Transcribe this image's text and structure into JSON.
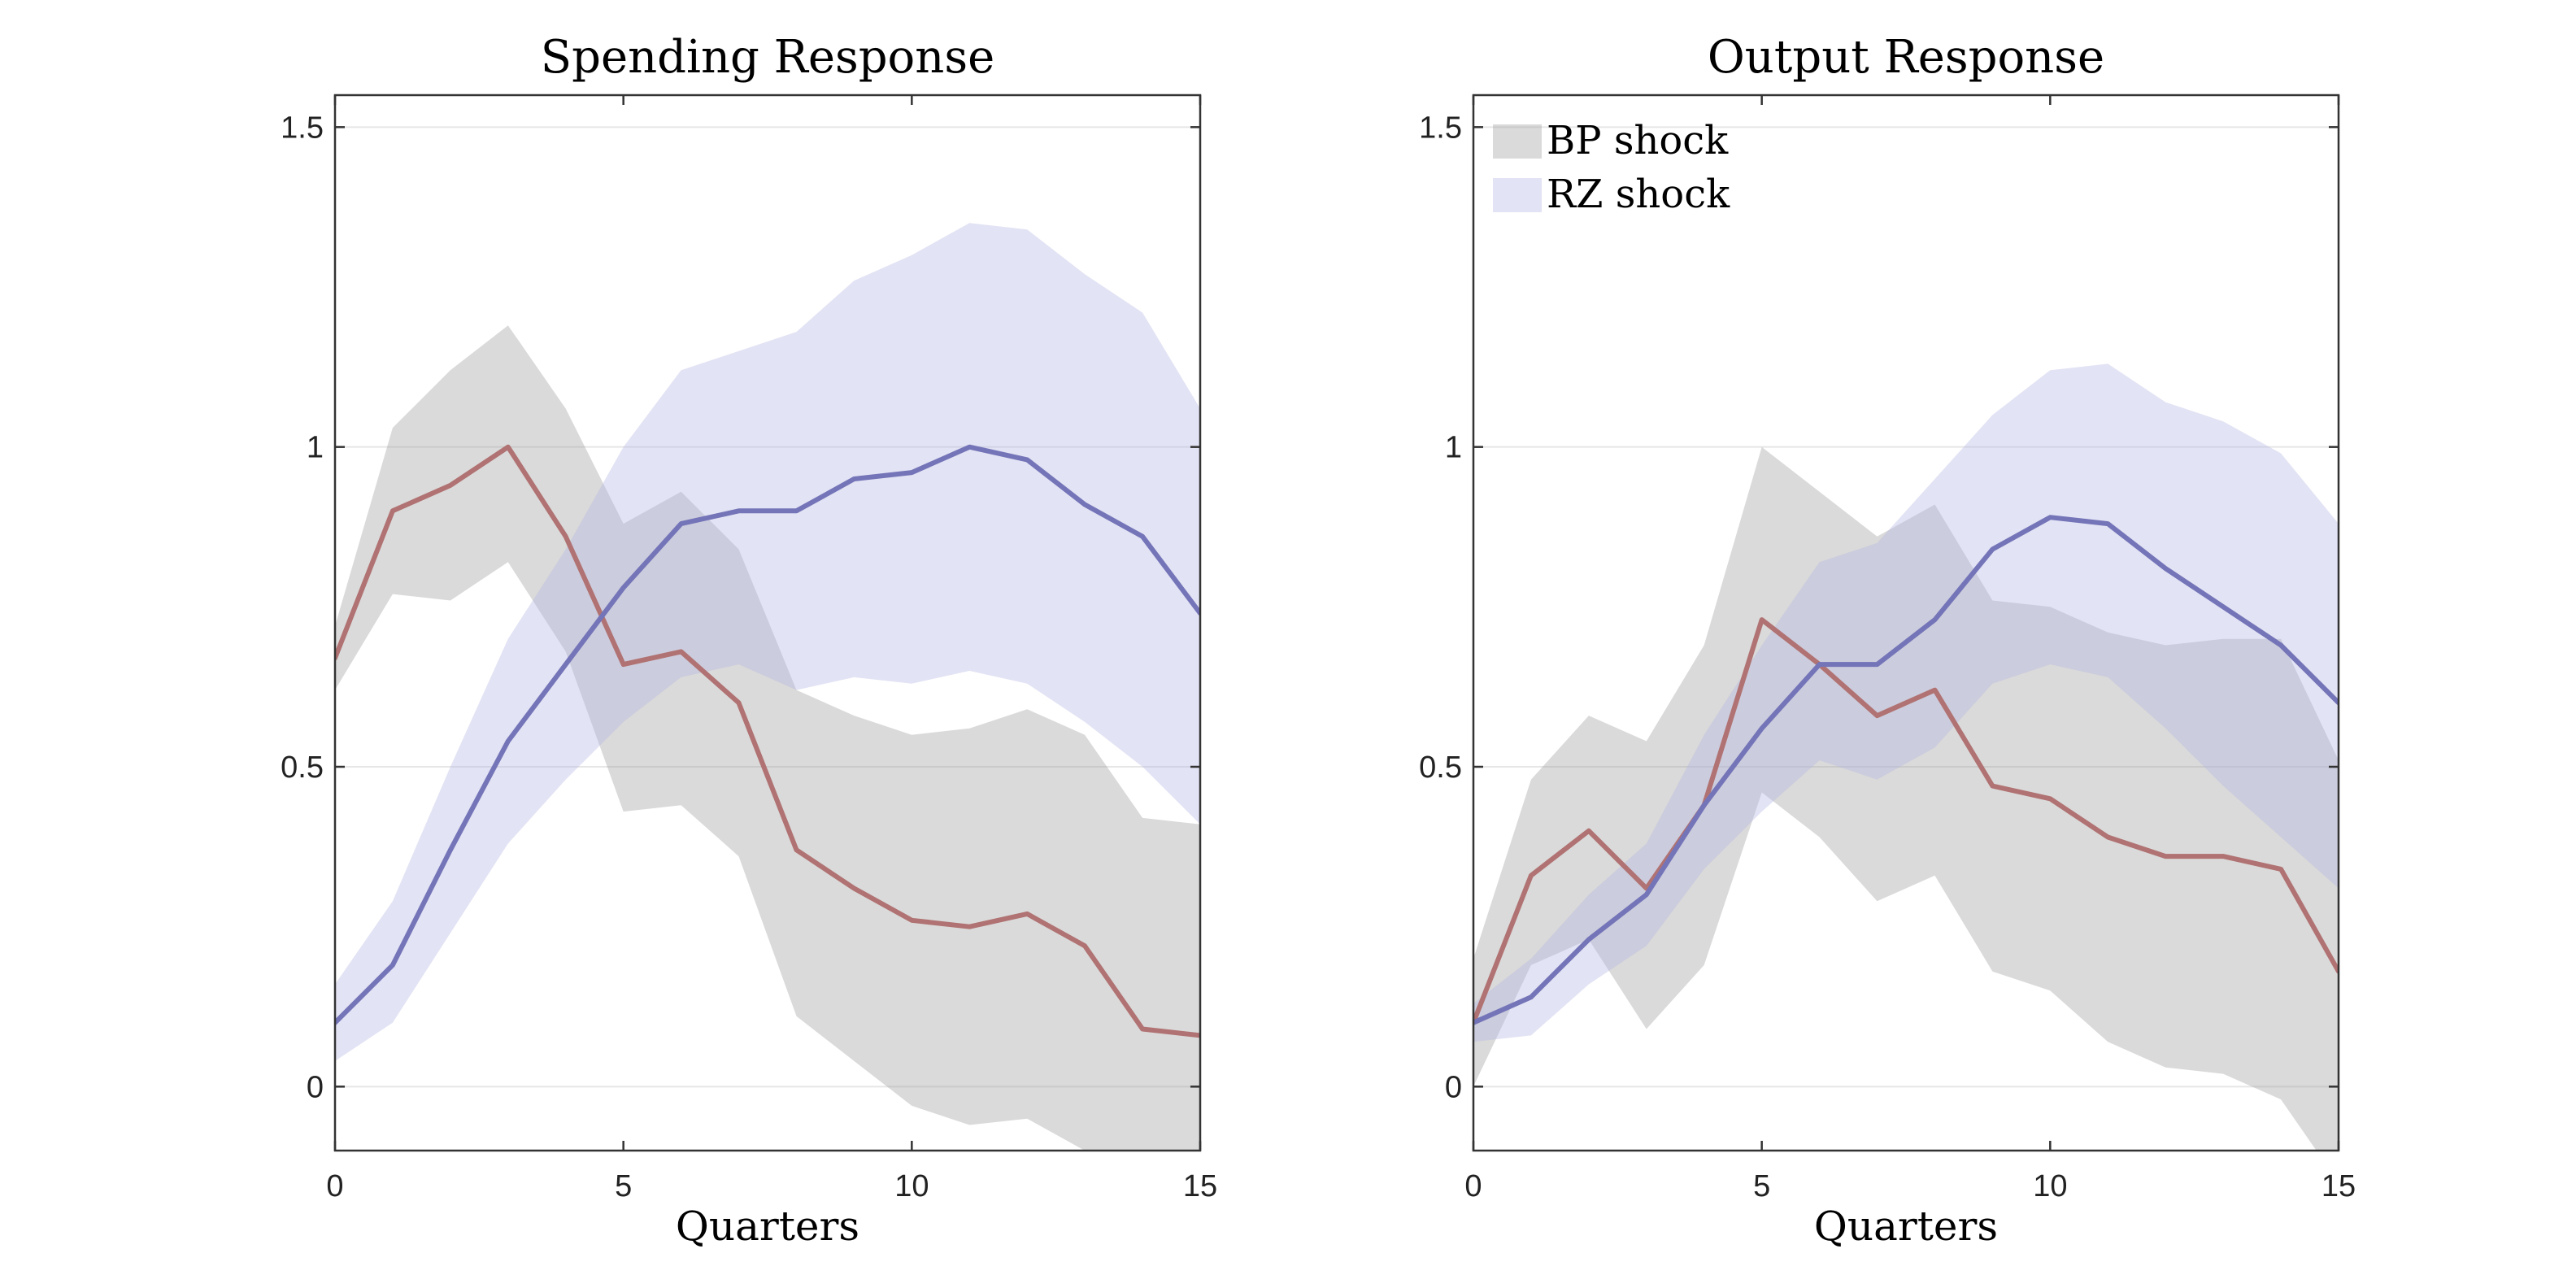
{
  "colors": {
    "bp_band": "#9e9e9e",
    "rz_band": "#b3b5e3",
    "bp_line": "#b07272",
    "rz_line": "#7474b8"
  },
  "legend": {
    "placement": "top-left",
    "entries": [
      "BP shock",
      "RZ shock"
    ]
  },
  "chart_data": [
    {
      "type": "line",
      "title": "Spending Response",
      "xlabel": "Quarters",
      "ylabel": "",
      "xlim": [
        0,
        15
      ],
      "ylim": [
        -0.1,
        1.55
      ],
      "xticks": [
        0,
        5,
        10,
        15
      ],
      "yticks": [
        0,
        0.5,
        1,
        1.5
      ],
      "ytick_labels": [
        "0",
        "0.5",
        "1",
        "1.5"
      ],
      "grid": true,
      "x": [
        0,
        1,
        2,
        3,
        4,
        5,
        6,
        7,
        8,
        9,
        10,
        11,
        12,
        13,
        14,
        15
      ],
      "series": [
        {
          "name": "BP shock",
          "band_color_key": "bp_band",
          "line_color_key": "bp_line",
          "values": [
            0.67,
            0.9,
            0.94,
            1.0,
            0.86,
            0.66,
            0.68,
            0.6,
            0.37,
            0.31,
            0.26,
            0.25,
            0.27,
            0.22,
            0.09,
            0.08
          ],
          "lower": [
            0.62,
            0.77,
            0.76,
            0.82,
            0.68,
            0.43,
            0.44,
            0.36,
            0.11,
            0.04,
            -0.03,
            -0.06,
            -0.05,
            -0.1,
            -0.14,
            -0.15
          ],
          "upper": [
            0.72,
            1.03,
            1.12,
            1.19,
            1.06,
            0.88,
            0.93,
            0.84,
            0.62,
            0.58,
            0.55,
            0.56,
            0.59,
            0.55,
            0.42,
            0.41
          ]
        },
        {
          "name": "RZ shock",
          "band_color_key": "rz_band",
          "line_color_key": "rz_line",
          "values": [
            0.1,
            0.19,
            0.37,
            0.54,
            0.66,
            0.78,
            0.88,
            0.9,
            0.9,
            0.95,
            0.96,
            1.0,
            0.98,
            0.91,
            0.86,
            0.74
          ],
          "lower": [
            0.04,
            0.1,
            0.24,
            0.38,
            0.48,
            0.57,
            0.64,
            0.66,
            0.62,
            0.64,
            0.63,
            0.65,
            0.63,
            0.57,
            0.5,
            0.41
          ],
          "upper": [
            0.16,
            0.29,
            0.5,
            0.7,
            0.84,
            1.0,
            1.12,
            1.15,
            1.18,
            1.26,
            1.3,
            1.35,
            1.34,
            1.27,
            1.21,
            1.06
          ]
        }
      ]
    },
    {
      "type": "line",
      "title": "Output Response",
      "xlabel": "Quarters",
      "ylabel": "",
      "xlim": [
        0,
        15
      ],
      "ylim": [
        -0.1,
        1.55
      ],
      "xticks": [
        0,
        5,
        10,
        15
      ],
      "yticks": [
        0,
        0.5,
        1,
        1.5
      ],
      "ytick_labels": [
        "0",
        "0.5",
        "1",
        "1.5"
      ],
      "grid": true,
      "x": [
        0,
        1,
        2,
        3,
        4,
        5,
        6,
        7,
        8,
        9,
        10,
        11,
        12,
        13,
        14,
        15
      ],
      "series": [
        {
          "name": "BP shock",
          "band_color_key": "bp_band",
          "line_color_key": "bp_line",
          "values": [
            0.1,
            0.33,
            0.4,
            0.31,
            0.44,
            0.73,
            0.66,
            0.58,
            0.62,
            0.47,
            0.45,
            0.39,
            0.36,
            0.36,
            0.34,
            0.18
          ],
          "lower": [
            0.0,
            0.19,
            0.23,
            0.09,
            0.19,
            0.46,
            0.39,
            0.29,
            0.33,
            0.18,
            0.15,
            0.07,
            0.03,
            0.02,
            -0.02,
            -0.15
          ],
          "upper": [
            0.2,
            0.48,
            0.58,
            0.54,
            0.69,
            1.0,
            0.93,
            0.86,
            0.91,
            0.76,
            0.75,
            0.71,
            0.69,
            0.7,
            0.7,
            0.51
          ]
        },
        {
          "name": "RZ shock",
          "band_color_key": "rz_band",
          "line_color_key": "rz_line",
          "values": [
            0.1,
            0.14,
            0.23,
            0.3,
            0.44,
            0.56,
            0.66,
            0.66,
            0.73,
            0.84,
            0.89,
            0.88,
            0.81,
            0.75,
            0.69,
            0.6
          ],
          "lower": [
            0.07,
            0.08,
            0.16,
            0.22,
            0.34,
            0.43,
            0.51,
            0.48,
            0.53,
            0.63,
            0.66,
            0.64,
            0.56,
            0.47,
            0.39,
            0.31
          ],
          "upper": [
            0.13,
            0.2,
            0.3,
            0.38,
            0.55,
            0.69,
            0.82,
            0.85,
            0.95,
            1.05,
            1.12,
            1.13,
            1.07,
            1.04,
            0.99,
            0.88
          ]
        }
      ]
    }
  ]
}
